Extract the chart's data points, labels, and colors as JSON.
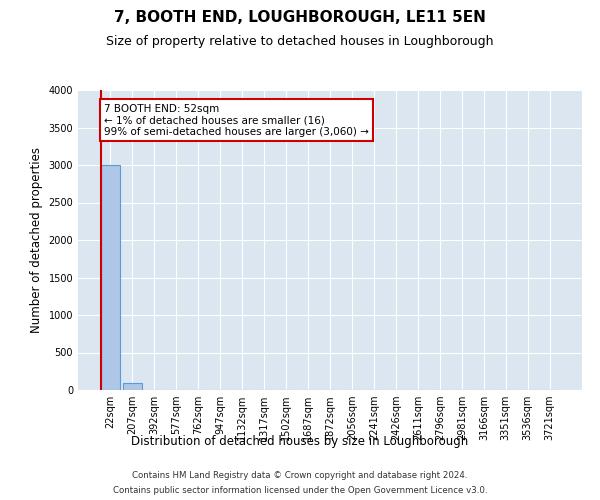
{
  "title": "7, BOOTH END, LOUGHBOROUGH, LE11 5EN",
  "subtitle": "Size of property relative to detached houses in Loughborough",
  "xlabel": "Distribution of detached houses by size in Loughborough",
  "ylabel": "Number of detached properties",
  "categories": [
    "22sqm",
    "207sqm",
    "392sqm",
    "577sqm",
    "762sqm",
    "947sqm",
    "1132sqm",
    "1317sqm",
    "1502sqm",
    "1687sqm",
    "1872sqm",
    "2056sqm",
    "2241sqm",
    "2426sqm",
    "2611sqm",
    "2796sqm",
    "2981sqm",
    "3166sqm",
    "3351sqm",
    "3536sqm",
    "3721sqm"
  ],
  "values": [
    3000,
    100,
    0,
    0,
    0,
    0,
    0,
    0,
    0,
    0,
    0,
    0,
    0,
    0,
    0,
    0,
    0,
    0,
    0,
    0,
    0
  ],
  "bar_color": "#aec6e8",
  "bar_edge_color": "#5b9bd5",
  "highlight_line_color": "#cc0000",
  "ylim": [
    0,
    4000
  ],
  "yticks": [
    0,
    500,
    1000,
    1500,
    2000,
    2500,
    3000,
    3500,
    4000
  ],
  "annotation_text": "7 BOOTH END: 52sqm\n← 1% of detached houses are smaller (16)\n99% of semi-detached houses are larger (3,060) →",
  "annotation_box_color": "#ffffff",
  "annotation_box_edge_color": "#cc0000",
  "bg_color": "#dce6f1",
  "footer_line1": "Contains HM Land Registry data © Crown copyright and database right 2024.",
  "footer_line2": "Contains public sector information licensed under the Open Government Licence v3.0.",
  "title_fontsize": 11,
  "subtitle_fontsize": 9,
  "tick_fontsize": 7,
  "ylabel_fontsize": 8.5,
  "xlabel_fontsize": 8.5
}
